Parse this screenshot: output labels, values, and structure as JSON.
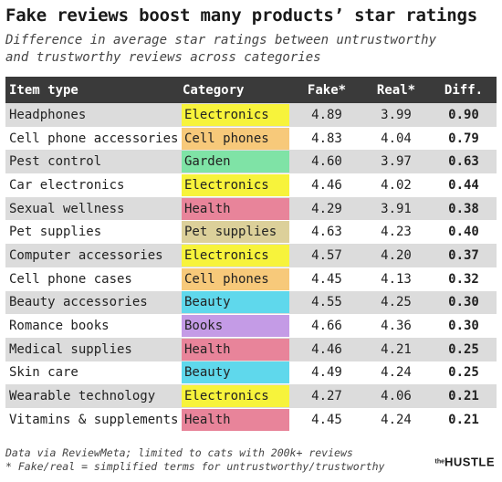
{
  "title": "Fake reviews boost many products’ star ratings",
  "subtitle": [
    "Difference in average star ratings between untrustworthy",
    "and trustworthy reviews across categories"
  ],
  "columns": [
    "Item type",
    "Category",
    "Fake*",
    "Real*",
    "Diff."
  ],
  "category_colors": {
    "Electronics": "#f7f33b",
    "Cell phones": "#f7c97a",
    "Garden": "#7fe3a6",
    "Health": "#e8849a",
    "Pet supplies": "#dcd09a",
    "Beauty": "#5fd8ec",
    "Books": "#c49be6"
  },
  "chart_data": {
    "type": "table",
    "title": "Fake reviews boost many products’ star ratings",
    "columns": [
      "Item type",
      "Category",
      "Fake*",
      "Real*",
      "Diff."
    ],
    "rows": [
      {
        "item": "Headphones",
        "category": "Electronics",
        "fake": "4.89",
        "real": "3.99",
        "diff": "0.90"
      },
      {
        "item": "Cell phone accessories",
        "category": "Cell phones",
        "fake": "4.83",
        "real": "4.04",
        "diff": "0.79"
      },
      {
        "item": "Pest control",
        "category": "Garden",
        "fake": "4.60",
        "real": "3.97",
        "diff": "0.63"
      },
      {
        "item": "Car electronics",
        "category": "Electronics",
        "fake": "4.46",
        "real": "4.02",
        "diff": "0.44"
      },
      {
        "item": "Sexual wellness",
        "category": "Health",
        "fake": "4.29",
        "real": "3.91",
        "diff": "0.38"
      },
      {
        "item": "Pet supplies",
        "category": "Pet supplies",
        "fake": "4.63",
        "real": "4.23",
        "diff": "0.40"
      },
      {
        "item": "Computer accessories",
        "category": "Electronics",
        "fake": "4.57",
        "real": "4.20",
        "diff": "0.37"
      },
      {
        "item": "Cell phone cases",
        "category": "Cell phones",
        "fake": "4.45",
        "real": "4.13",
        "diff": "0.32"
      },
      {
        "item": "Beauty accessories",
        "category": "Beauty",
        "fake": "4.55",
        "real": "4.25",
        "diff": "0.30"
      },
      {
        "item": "Romance books",
        "category": "Books",
        "fake": "4.66",
        "real": "4.36",
        "diff": "0.30"
      },
      {
        "item": "Medical supplies",
        "category": "Health",
        "fake": "4.46",
        "real": "4.21",
        "diff": "0.25"
      },
      {
        "item": "Skin care",
        "category": "Beauty",
        "fake": "4.49",
        "real": "4.24",
        "diff": "0.25"
      },
      {
        "item": "Wearable technology",
        "category": "Electronics",
        "fake": "4.27",
        "real": "4.06",
        "diff": "0.21"
      },
      {
        "item": "Vitamins & supplements",
        "category": "Health",
        "fake": "4.45",
        "real": "4.24",
        "diff": "0.21"
      }
    ]
  },
  "footer": [
    "Data via ReviewMeta; limited to cats with 200k+ reviews",
    "* Fake/real = simplified terms for untrustworthy/trustworthy"
  ],
  "logo": {
    "the": "the",
    "name": "HUSTLE"
  }
}
